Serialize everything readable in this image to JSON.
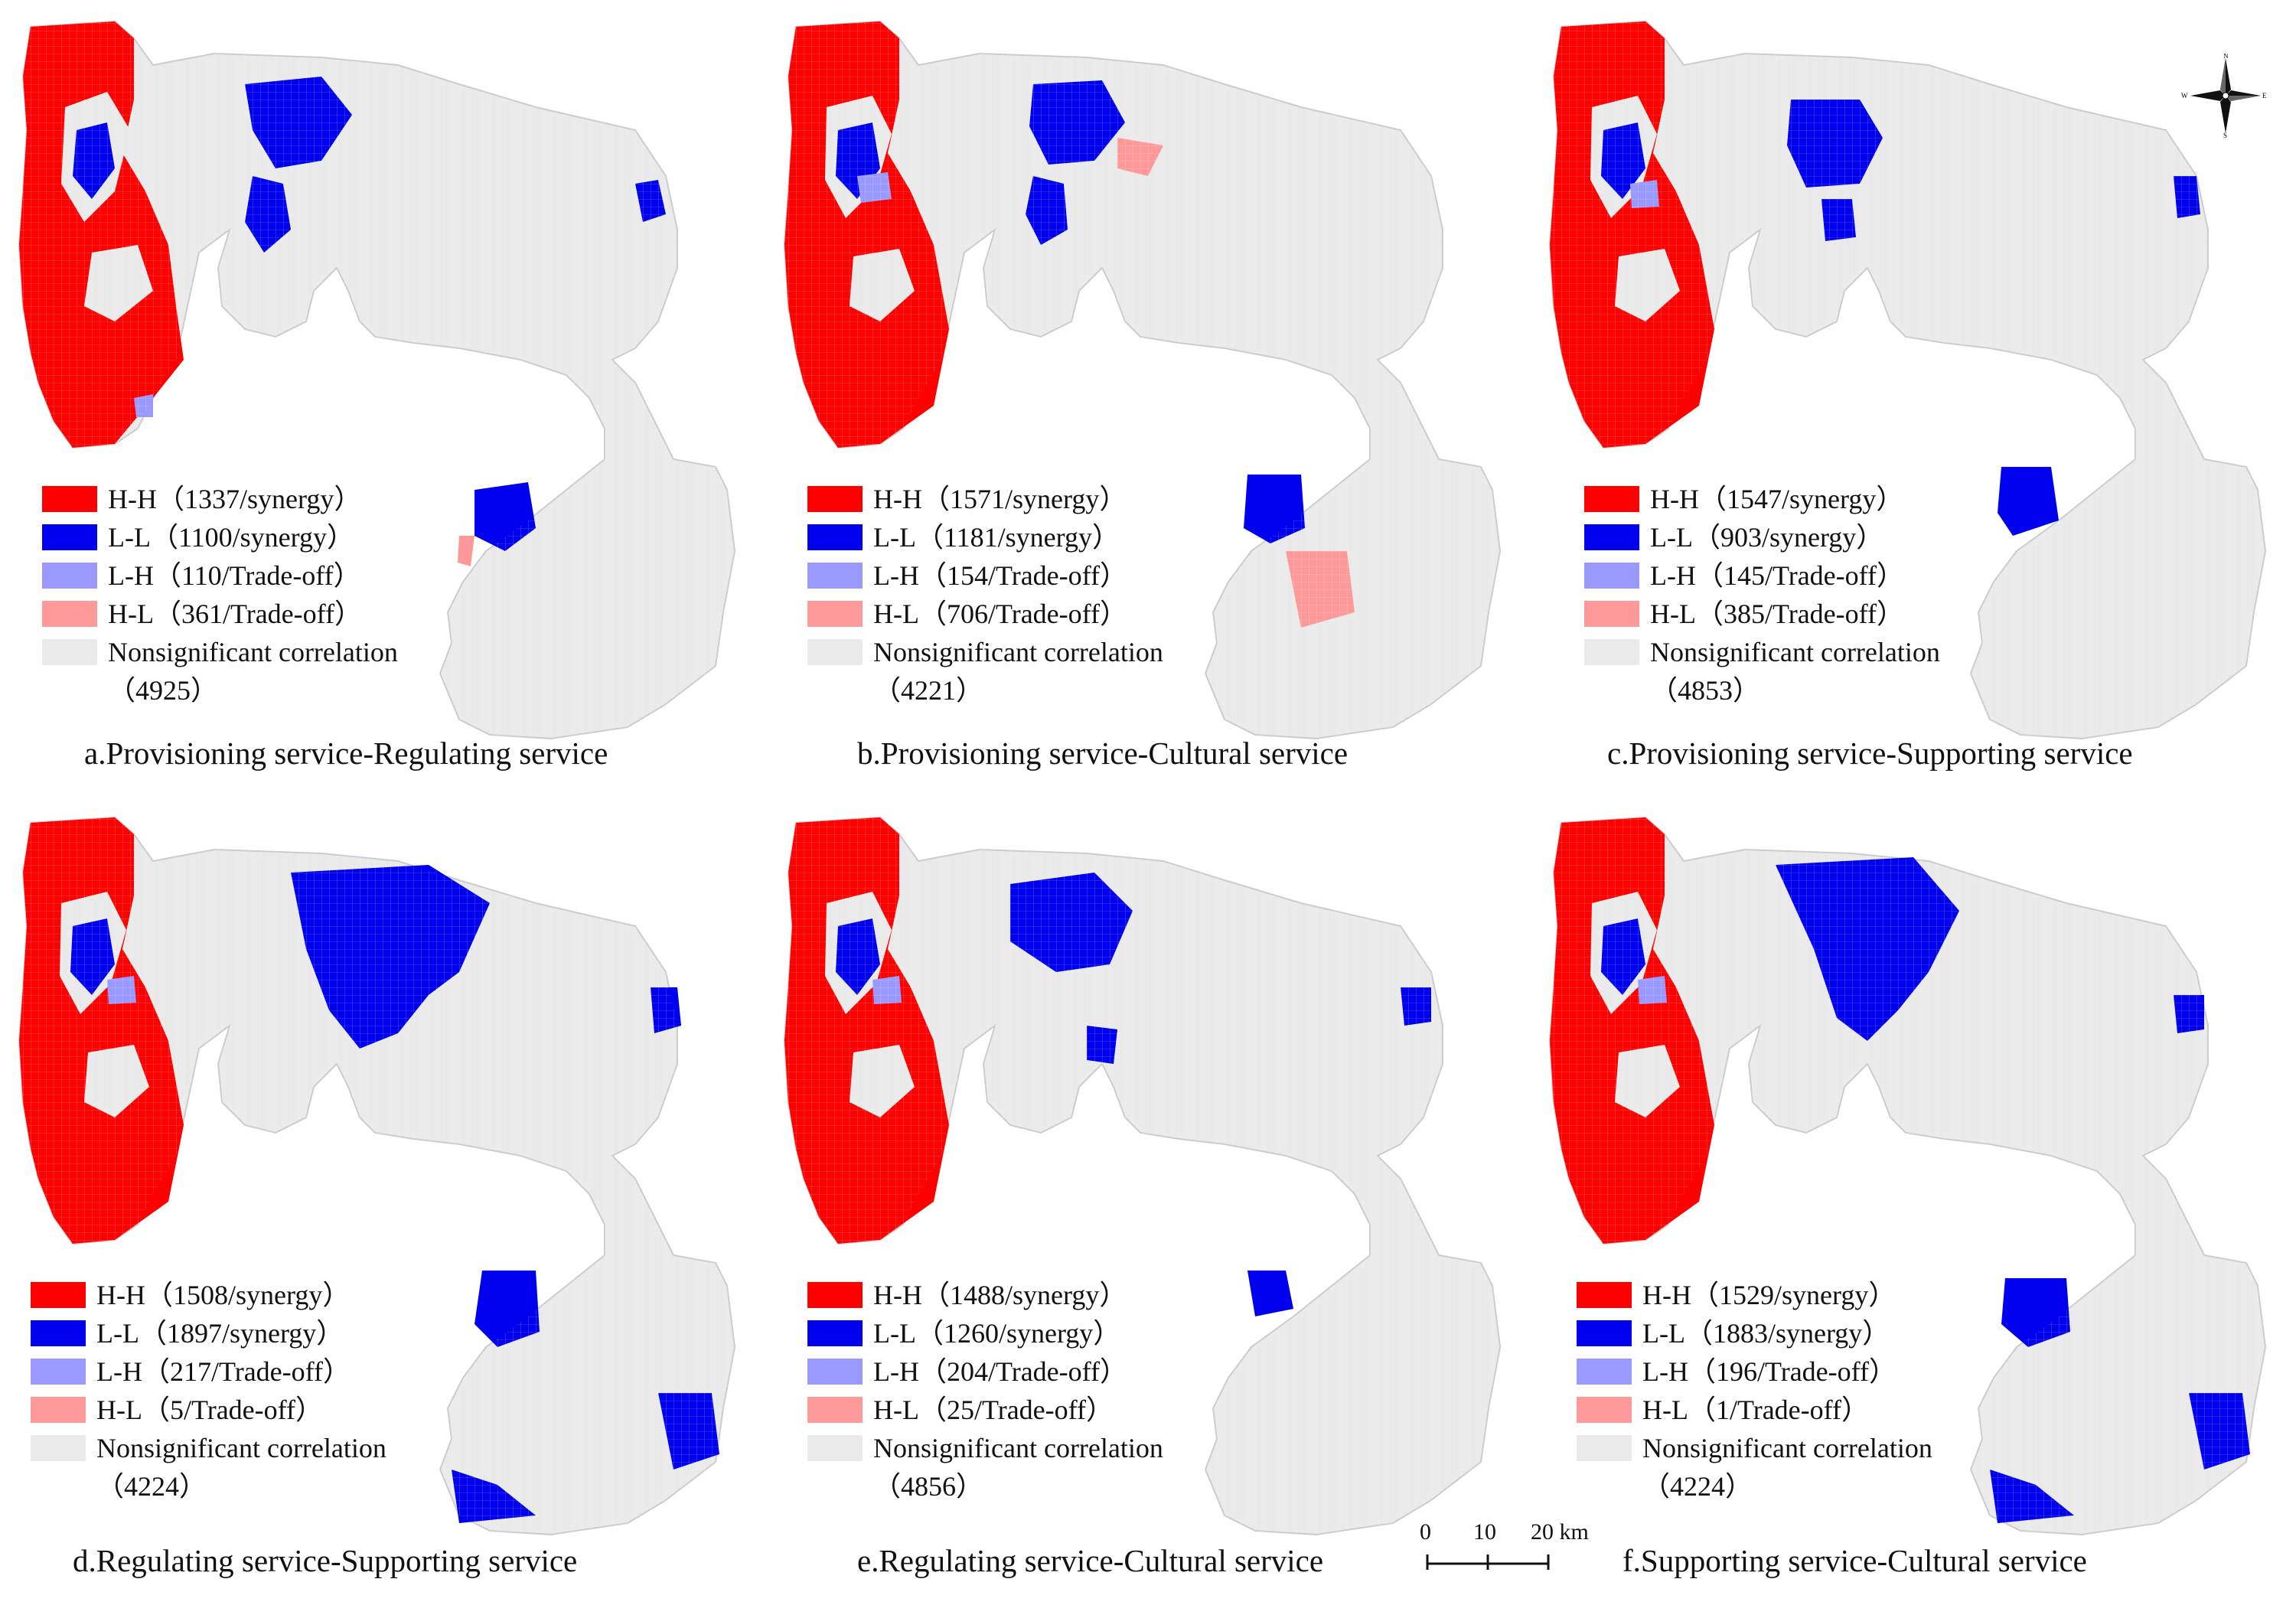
{
  "colors": {
    "hh": "#ff0000",
    "ll": "#0000ee",
    "lh": "#9999ff",
    "hl": "#ff9999",
    "ns": "#eaeaea",
    "boundary_accent": "#f4a040"
  },
  "panels": [
    {
      "caption": "a.Provisioning service-Regulating service",
      "legend": {
        "hh": "H-H（1337/synergy）",
        "ll": "L-L（1100/synergy）",
        "lh": "L-H（110/Trade-off）",
        "hl": "H-L（361/Trade-off）",
        "ns_label": "Nonsignificant correlation",
        "ns_count": "（4925）"
      }
    },
    {
      "caption": "b.Provisioning service-Cultural service",
      "legend": {
        "hh": "H-H（1571/synergy）",
        "ll": "L-L（1181/synergy）",
        "lh": "L-H（154/Trade-off）",
        "hl": "H-L（706/Trade-off）",
        "ns_label": "Nonsignificant correlation",
        "ns_count": "（4221）"
      }
    },
    {
      "caption": "c.Provisioning service-Supporting service",
      "legend": {
        "hh": "H-H（1547/synergy）",
        "ll": "L-L（903/synergy）",
        "lh": "L-H（145/Trade-off）",
        "hl": "H-L（385/Trade-off）",
        "ns_label": "Nonsignificant correlation",
        "ns_count": "（4853）"
      }
    },
    {
      "caption": "d.Regulating service-Supporting service",
      "legend": {
        "hh": "H-H（1508/synergy）",
        "ll": "L-L（1897/synergy）",
        "lh": "L-H（217/Trade-off）",
        "hl": "H-L（5/Trade-off）",
        "ns_label": "Nonsignificant correlation",
        "ns_count": "（4224）"
      }
    },
    {
      "caption": "e.Regulating service-Cultural service",
      "legend": {
        "hh": "H-H（1488/synergy）",
        "ll": "L-L（1260/synergy）",
        "lh": "L-H（204/Trade-off）",
        "hl": "H-L（25/Trade-off）",
        "ns_label": "Nonsignificant correlation",
        "ns_count": "（4856）"
      }
    },
    {
      "caption": "f.Supporting service-Cultural service",
      "legend": {
        "hh": "H-H（1529/synergy）",
        "ll": "L-L（1883/synergy）",
        "lh": "L-H（196/Trade-off）",
        "hl": "H-L（1/Trade-off）",
        "ns_label": "Nonsignificant correlation",
        "ns_count": "（4224）"
      }
    }
  ],
  "scalebar": {
    "ticks": [
      "0",
      "10",
      "20 km"
    ]
  },
  "compass": {
    "n": "N",
    "s": "S",
    "e": "E",
    "w": "W"
  },
  "icons": {
    "compass": "north-arrow-icon"
  }
}
